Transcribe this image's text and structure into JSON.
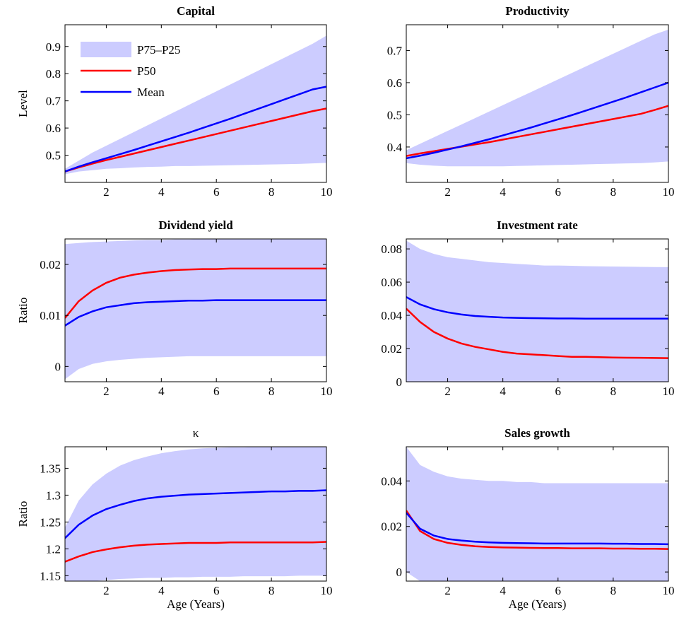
{
  "chart_data": [
    {
      "type": "line",
      "title": "Capital",
      "ylabel": "Level",
      "x": [
        0.5,
        1,
        1.5,
        2,
        2.5,
        3,
        3.5,
        4,
        4.5,
        5,
        5.5,
        6,
        6.5,
        7,
        7.5,
        8,
        8.5,
        9,
        9.5,
        10
      ],
      "xlim": [
        0.5,
        10
      ],
      "xticks": [
        2,
        4,
        6,
        8,
        10
      ],
      "ylim": [
        0.4,
        0.98
      ],
      "yticks": [
        0.5,
        0.6,
        0.7,
        0.8,
        0.9
      ],
      "legend": "upper left",
      "series": [
        {
          "name": "P75–P25",
          "color": "#ccccff",
          "values": [
            0.45,
            0.48,
            0.51,
            0.535,
            0.56,
            0.585,
            0.61,
            0.635,
            0.66,
            0.685,
            0.71,
            0.735,
            0.76,
            0.785,
            0.81,
            0.835,
            0.86,
            0.885,
            0.91,
            0.94
          ],
          "lower": [
            0.43,
            0.44,
            0.445,
            0.45,
            0.452,
            0.455,
            0.457,
            0.458,
            0.46,
            0.46,
            0.461,
            0.462,
            0.463,
            0.464,
            0.465,
            0.466,
            0.467,
            0.468,
            0.47,
            0.472
          ]
        },
        {
          "name": "P50",
          "color": "#ff0000",
          "values": [
            0.44,
            0.455,
            0.469,
            0.482,
            0.494,
            0.506,
            0.518,
            0.53,
            0.542,
            0.554,
            0.566,
            0.578,
            0.59,
            0.602,
            0.614,
            0.626,
            0.638,
            0.65,
            0.662,
            0.672
          ]
        },
        {
          "name": "Mean",
          "color": "#0000ff",
          "values": [
            0.44,
            0.458,
            0.474,
            0.489,
            0.504,
            0.519,
            0.535,
            0.551,
            0.567,
            0.583,
            0.6,
            0.617,
            0.634,
            0.652,
            0.67,
            0.688,
            0.706,
            0.724,
            0.742,
            0.752
          ]
        }
      ]
    },
    {
      "type": "line",
      "title": "Productivity",
      "x": [
        0.5,
        1,
        1.5,
        2,
        2.5,
        3,
        3.5,
        4,
        4.5,
        5,
        5.5,
        6,
        6.5,
        7,
        7.5,
        8,
        8.5,
        9,
        9.5,
        10
      ],
      "xlim": [
        0.5,
        10
      ],
      "xticks": [
        2,
        4,
        6,
        8,
        10
      ],
      "ylim": [
        0.29,
        0.78
      ],
      "yticks": [
        0.4,
        0.5,
        0.6,
        0.7
      ],
      "series": [
        {
          "color": "#ccccff",
          "values": [
            0.39,
            0.41,
            0.43,
            0.45,
            0.47,
            0.49,
            0.51,
            0.53,
            0.55,
            0.57,
            0.59,
            0.61,
            0.63,
            0.65,
            0.67,
            0.69,
            0.71,
            0.73,
            0.75,
            0.765
          ],
          "lower": [
            0.35,
            0.345,
            0.342,
            0.34,
            0.34,
            0.34,
            0.34,
            0.34,
            0.341,
            0.342,
            0.343,
            0.344,
            0.345,
            0.346,
            0.347,
            0.348,
            0.349,
            0.35,
            0.352,
            0.355
          ]
        },
        {
          "color": "#ff0000",
          "values": [
            0.372,
            0.38,
            0.387,
            0.394,
            0.401,
            0.408,
            0.415,
            0.423,
            0.431,
            0.439,
            0.447,
            0.455,
            0.463,
            0.471,
            0.479,
            0.487,
            0.495,
            0.503,
            0.515,
            0.528
          ]
        },
        {
          "color": "#0000ff",
          "values": [
            0.365,
            0.373,
            0.382,
            0.392,
            0.402,
            0.413,
            0.424,
            0.436,
            0.448,
            0.46,
            0.473,
            0.486,
            0.499,
            0.513,
            0.527,
            0.541,
            0.555,
            0.57,
            0.585,
            0.6
          ]
        }
      ]
    },
    {
      "type": "line",
      "title": "Dividend yield",
      "ylabel": "Ratio",
      "x": [
        0.5,
        1,
        1.5,
        2,
        2.5,
        3,
        3.5,
        4,
        4.5,
        5,
        5.5,
        6,
        6.5,
        7,
        7.5,
        8,
        8.5,
        9,
        9.5,
        10
      ],
      "xlim": [
        0.5,
        10
      ],
      "xticks": [
        2,
        4,
        6,
        8,
        10
      ],
      "ylim": [
        -0.003,
        0.025
      ],
      "yticks": [
        0,
        0.01,
        0.02
      ],
      "series": [
        {
          "color": "#ccccff",
          "values": [
            0.024,
            0.0242,
            0.0244,
            0.0245,
            0.0246,
            0.0247,
            0.0248,
            0.0248,
            0.0249,
            0.0249,
            0.025,
            0.025,
            0.025,
            0.025,
            0.025,
            0.025,
            0.025,
            0.025,
            0.025,
            0.025
          ],
          "lower": [
            -0.0025,
            -0.0005,
            0.0005,
            0.001,
            0.0013,
            0.0015,
            0.0017,
            0.0018,
            0.0019,
            0.002,
            0.002,
            0.002,
            0.002,
            0.002,
            0.002,
            0.002,
            0.002,
            0.002,
            0.002,
            0.002
          ]
        },
        {
          "color": "#ff0000",
          "values": [
            0.0095,
            0.0128,
            0.0149,
            0.0164,
            0.0174,
            0.018,
            0.0184,
            0.0187,
            0.0189,
            0.019,
            0.0191,
            0.0191,
            0.0192,
            0.0192,
            0.0192,
            0.0192,
            0.0192,
            0.0192,
            0.0192,
            0.0192
          ]
        },
        {
          "color": "#0000ff",
          "values": [
            0.008,
            0.0097,
            0.0108,
            0.0116,
            0.012,
            0.0124,
            0.0126,
            0.0127,
            0.0128,
            0.0129,
            0.0129,
            0.013,
            0.013,
            0.013,
            0.013,
            0.013,
            0.013,
            0.013,
            0.013,
            0.013
          ]
        }
      ]
    },
    {
      "type": "line",
      "title": "Investment rate",
      "x": [
        0.5,
        1,
        1.5,
        2,
        2.5,
        3,
        3.5,
        4,
        4.5,
        5,
        5.5,
        6,
        6.5,
        7,
        7.5,
        8,
        8.5,
        9,
        9.5,
        10
      ],
      "xlim": [
        0.5,
        10
      ],
      "xticks": [
        2,
        4,
        6,
        8,
        10
      ],
      "ylim": [
        0,
        0.086
      ],
      "yticks": [
        0,
        0.02,
        0.04,
        0.06,
        0.08
      ],
      "series": [
        {
          "color": "#ccccff",
          "values": [
            0.085,
            0.08,
            0.077,
            0.075,
            0.074,
            0.073,
            0.072,
            0.0715,
            0.071,
            0.0705,
            0.07,
            0.07,
            0.0698,
            0.0696,
            0.0695,
            0.0694,
            0.0693,
            0.0692,
            0.0691,
            0.069
          ],
          "lower": [
            0,
            0,
            0,
            0,
            0,
            0,
            0,
            0,
            0,
            0,
            0,
            0,
            0,
            0,
            0,
            0,
            0,
            0,
            0,
            0
          ]
        },
        {
          "color": "#ff0000",
          "values": [
            0.044,
            0.036,
            0.03,
            0.026,
            0.023,
            0.021,
            0.0195,
            0.018,
            0.017,
            0.0165,
            0.016,
            0.0155,
            0.015,
            0.015,
            0.0148,
            0.0146,
            0.0145,
            0.0144,
            0.0143,
            0.0142
          ]
        },
        {
          "color": "#0000ff",
          "values": [
            0.051,
            0.0466,
            0.0437,
            0.0418,
            0.0405,
            0.0396,
            0.0391,
            0.0387,
            0.0385,
            0.0383,
            0.0382,
            0.0381,
            0.0381,
            0.038,
            0.038,
            0.038,
            0.038,
            0.038,
            0.038,
            0.038
          ]
        }
      ]
    },
    {
      "type": "line",
      "title": "κ",
      "ylabel": "Ratio",
      "xlabel": "Age (Years)",
      "x": [
        0.5,
        1,
        1.5,
        2,
        2.5,
        3,
        3.5,
        4,
        4.5,
        5,
        5.5,
        6,
        6.5,
        7,
        7.5,
        8,
        8.5,
        9,
        9.5,
        10
      ],
      "xlim": [
        0.5,
        10
      ],
      "xticks": [
        2,
        4,
        6,
        8,
        10
      ],
      "ylim": [
        1.14,
        1.39
      ],
      "yticks": [
        1.15,
        1.2,
        1.25,
        1.3,
        1.35
      ],
      "series": [
        {
          "color": "#ccccff",
          "values": [
            1.24,
            1.29,
            1.32,
            1.34,
            1.355,
            1.365,
            1.372,
            1.378,
            1.382,
            1.385,
            1.387,
            1.388,
            1.389,
            1.389,
            1.39,
            1.39,
            1.39,
            1.39,
            1.39,
            1.39
          ],
          "lower": [
            1.13,
            1.136,
            1.14,
            1.142,
            1.144,
            1.145,
            1.146,
            1.146,
            1.147,
            1.147,
            1.148,
            1.148,
            1.148,
            1.149,
            1.149,
            1.149,
            1.149,
            1.15,
            1.15,
            1.15
          ]
        },
        {
          "color": "#ff0000",
          "values": [
            1.176,
            1.186,
            1.194,
            1.199,
            1.203,
            1.206,
            1.208,
            1.209,
            1.21,
            1.211,
            1.211,
            1.211,
            1.212,
            1.212,
            1.212,
            1.212,
            1.212,
            1.212,
            1.212,
            1.213
          ]
        },
        {
          "color": "#0000ff",
          "values": [
            1.22,
            1.245,
            1.262,
            1.274,
            1.282,
            1.289,
            1.294,
            1.297,
            1.299,
            1.301,
            1.302,
            1.303,
            1.304,
            1.305,
            1.306,
            1.307,
            1.307,
            1.308,
            1.308,
            1.309
          ]
        }
      ]
    },
    {
      "type": "line",
      "title": "Sales growth",
      "xlabel": "Age (Years)",
      "x": [
        0.5,
        1,
        1.5,
        2,
        2.5,
        3,
        3.5,
        4,
        4.5,
        5,
        5.5,
        6,
        6.5,
        7,
        7.5,
        8,
        8.5,
        9,
        9.5,
        10
      ],
      "xlim": [
        0.5,
        10
      ],
      "xticks": [
        2,
        4,
        6,
        8,
        10
      ],
      "ylim": [
        -0.004,
        0.055
      ],
      "yticks": [
        0,
        0.02,
        0.04
      ],
      "series": [
        {
          "color": "#ccccff",
          "values": [
            0.055,
            0.047,
            0.044,
            0.042,
            0.041,
            0.0405,
            0.04,
            0.04,
            0.0395,
            0.0395,
            0.039,
            0.039,
            0.039,
            0.039,
            0.039,
            0.039,
            0.039,
            0.039,
            0.039,
            0.039
          ],
          "lower": [
            0,
            -0.004,
            -0.006,
            -0.007,
            -0.0075,
            -0.008,
            -0.0082,
            -0.0084,
            -0.0085,
            -0.0086,
            -0.0087,
            -0.0088,
            -0.0088,
            -0.0089,
            -0.0089,
            -0.009,
            -0.009,
            -0.009,
            -0.009,
            -0.009
          ]
        },
        {
          "color": "#ff0000",
          "values": [
            0.027,
            0.018,
            0.0145,
            0.0128,
            0.0119,
            0.0113,
            0.011,
            0.0108,
            0.0107,
            0.0106,
            0.0105,
            0.0105,
            0.0104,
            0.0104,
            0.0104,
            0.0103,
            0.0103,
            0.0102,
            0.0102,
            0.0101
          ]
        },
        {
          "color": "#0000ff",
          "values": [
            0.026,
            0.019,
            0.016,
            0.0145,
            0.0138,
            0.0133,
            0.013,
            0.0128,
            0.0127,
            0.0126,
            0.0125,
            0.0125,
            0.0125,
            0.0125,
            0.0125,
            0.0124,
            0.0124,
            0.0123,
            0.0123,
            0.0122
          ]
        }
      ]
    }
  ]
}
